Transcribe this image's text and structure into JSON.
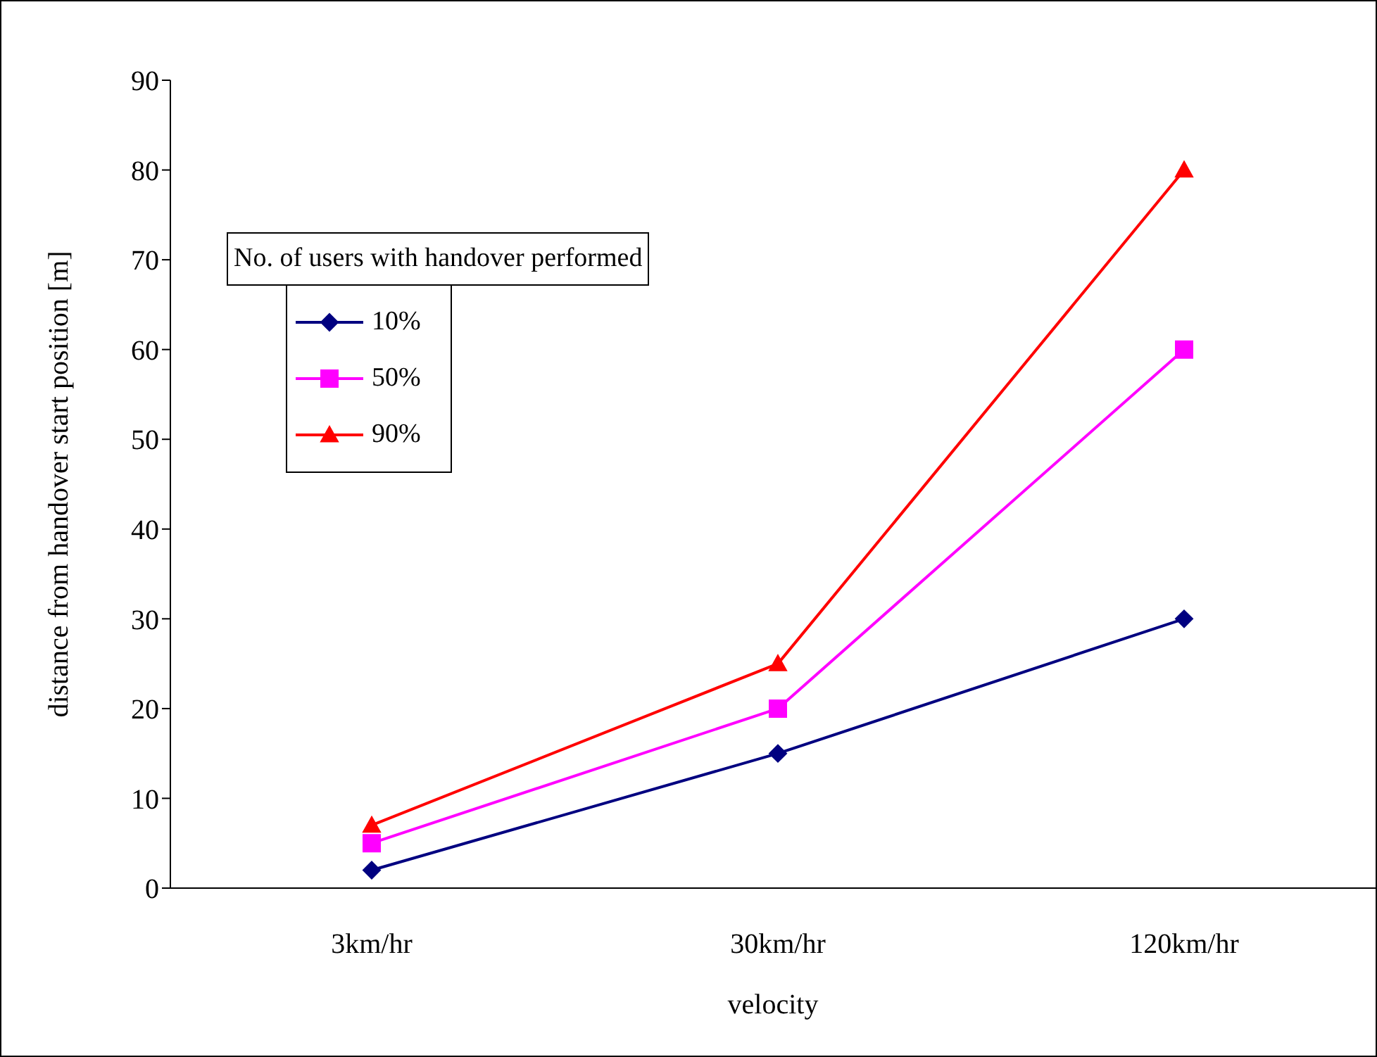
{
  "chart_data": {
    "type": "line",
    "xlabel": "velocity",
    "ylabel": "distance from handover start position [m]",
    "legend_title": "No. of users with handover performed",
    "legend": "top left",
    "grid": false,
    "categories": [
      "3km/hr",
      "30km/hr",
      "120km/hr"
    ],
    "ylim": [
      0,
      90
    ],
    "yticks": [
      0,
      10,
      20,
      30,
      40,
      50,
      60,
      70,
      80,
      90
    ],
    "series": [
      {
        "name": "10%",
        "color": "#000080",
        "marker": "diamond",
        "values": [
          2,
          15,
          30
        ]
      },
      {
        "name": "50%",
        "color": "#ff00ff",
        "marker": "square",
        "values": [
          5,
          20,
          60
        ]
      },
      {
        "name": "90%",
        "color": "#ff0000",
        "marker": "triangle",
        "values": [
          7,
          25,
          80
        ]
      }
    ]
  }
}
